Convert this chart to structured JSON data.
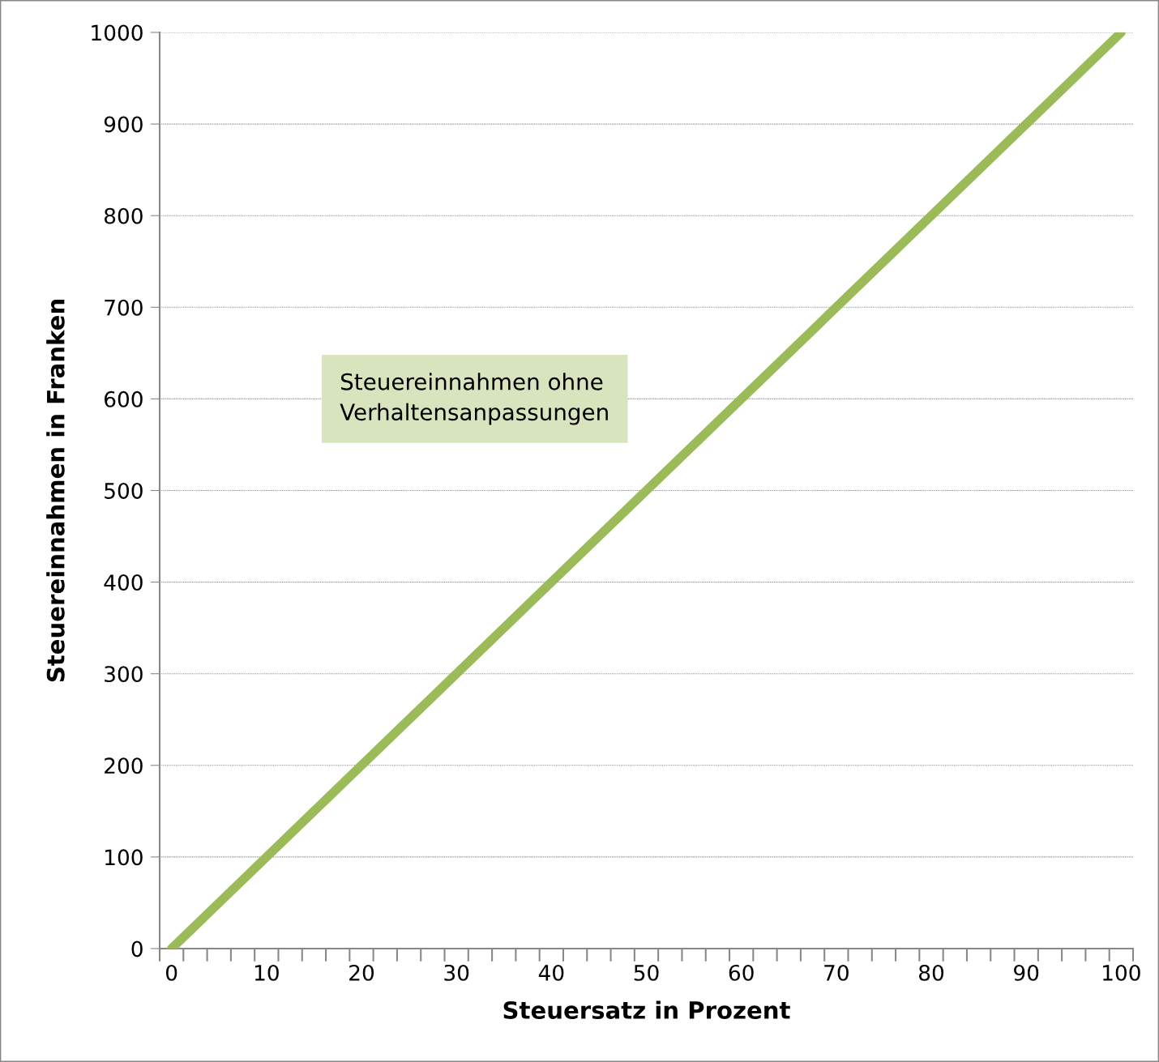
{
  "chart_data": {
    "type": "line",
    "xlabel": "Steuersatz in Prozent",
    "ylabel": "Steuereinnahmen in Franken",
    "x": [
      0,
      100
    ],
    "series": [
      {
        "color": "#9bbb59",
        "values": [
          0,
          1000
        ]
      }
    ],
    "xlim": [
      -1.25,
      101.25
    ],
    "ylim": [
      0,
      1000
    ],
    "xticks": [
      0,
      10,
      20,
      30,
      40,
      50,
      60,
      70,
      80,
      90,
      100
    ],
    "yticks": [
      0,
      100,
      200,
      300,
      400,
      500,
      600,
      700,
      800,
      900,
      1000
    ],
    "grid": "y",
    "legend": false,
    "line_style": "solid",
    "annotations": [
      "Steuereinnahmen ohne\nVerhaltensanpassungen"
    ]
  }
}
